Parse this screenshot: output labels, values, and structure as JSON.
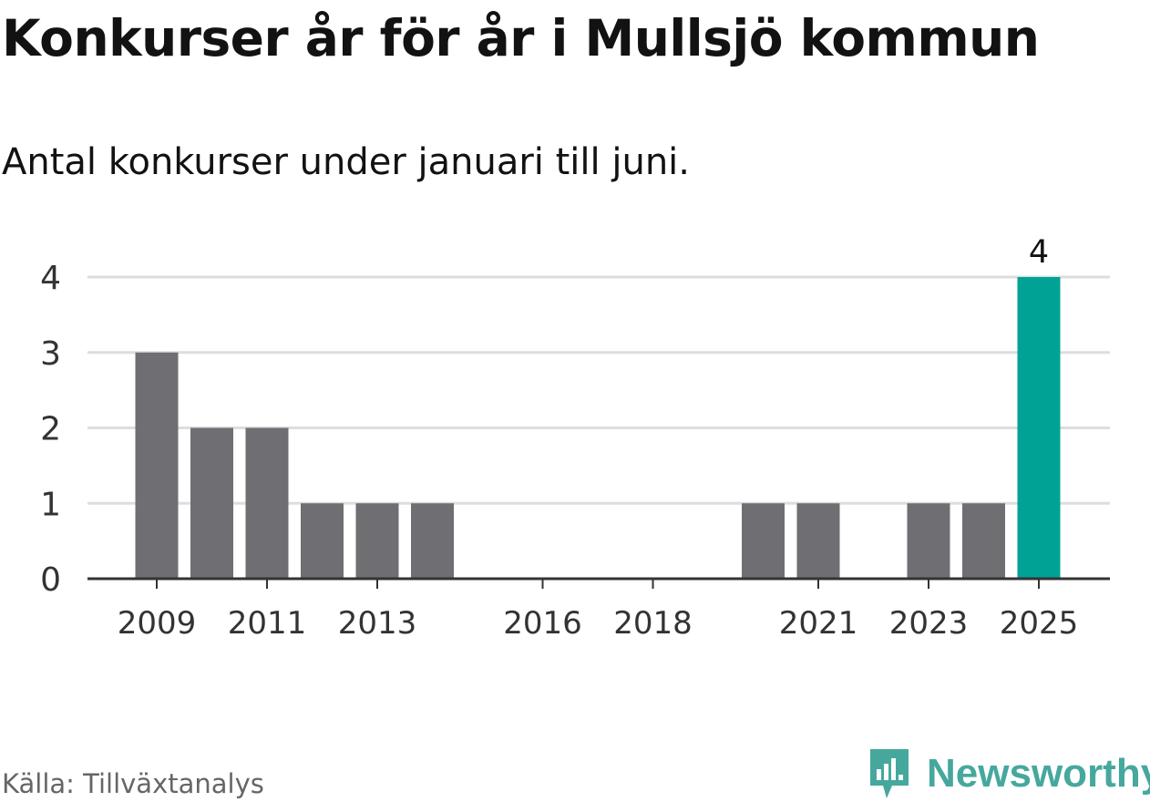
{
  "header": {
    "title": "Konkurser år för år i Mullsjö kommun",
    "subtitle": "Antal konkurser under januari till juni."
  },
  "footer": {
    "source": "Källa: Tillväxtanalys",
    "brand": "Newsworthy",
    "brand_icon": "newsworthy-logo-icon"
  },
  "colors": {
    "bar": "#6f6e73",
    "highlight": "#00a296",
    "grid": "#dddddd",
    "axis": "#333333",
    "brand": "#46a89d"
  },
  "chart_data": {
    "type": "bar",
    "categories": [
      "2009",
      "2010",
      "2011",
      "2012",
      "2013",
      "2014",
      "2015",
      "2016",
      "2017",
      "2018",
      "2019",
      "2020",
      "2021",
      "2022",
      "2023",
      "2024",
      "2025"
    ],
    "values": [
      3,
      2,
      2,
      1,
      1,
      1,
      0,
      0,
      0,
      0,
      0,
      1,
      1,
      0,
      1,
      1,
      4
    ],
    "x_tick_labels": [
      "2009",
      "2011",
      "2013",
      "2016",
      "2018",
      "2021",
      "2023",
      "2025"
    ],
    "y_ticks": [
      0,
      1,
      2,
      3,
      4
    ],
    "ylim": [
      0,
      4
    ],
    "highlight_category": "2025",
    "data_labels": [
      {
        "category": "2025",
        "label": "4"
      }
    ],
    "grid": true,
    "xlabel": "",
    "ylabel": ""
  }
}
